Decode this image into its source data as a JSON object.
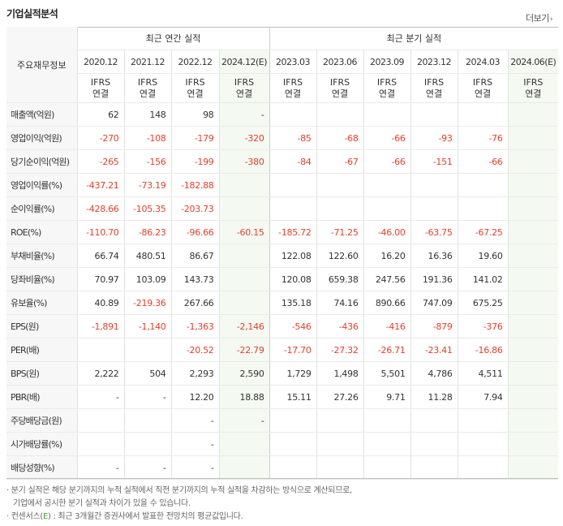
{
  "header": {
    "title": "기업실적분석",
    "more_label": "더보기",
    "more_chevron": "›"
  },
  "table": {
    "row_header_label": "주요재무정보",
    "groups": {
      "annual": "최근 연간 실적",
      "quarterly": "최근 분기 실적"
    },
    "periods": [
      "2020.12",
      "2021.12",
      "2022.12",
      "2024.12(E)",
      "2023.03",
      "2023.06",
      "2023.09",
      "2023.12",
      "2024.03",
      "2024.06(E)"
    ],
    "ifrs": [
      "IFRS",
      "IFRS",
      "IFRS",
      "IFRS",
      "IFRS",
      "IFRS",
      "IFRS",
      "IFRS",
      "IFRS",
      "IFRS"
    ],
    "basis": [
      "연결",
      "연결",
      "연결",
      "연결",
      "연결",
      "연결",
      "연결",
      "연결",
      "연결",
      "연결"
    ],
    "rows": [
      {
        "label": "매출액(억원)",
        "values": [
          "62",
          "148",
          "98",
          "-",
          "",
          "",
          "",
          "",
          "",
          ""
        ]
      },
      {
        "label": "영업이익(억원)",
        "values": [
          "-270",
          "-108",
          "-179",
          "-320",
          "-85",
          "-68",
          "-66",
          "-93",
          "-76",
          ""
        ]
      },
      {
        "label": "당기순이익(억원)",
        "values": [
          "-265",
          "-156",
          "-199",
          "-380",
          "-84",
          "-67",
          "-66",
          "-151",
          "-66",
          ""
        ]
      },
      {
        "label": "영업이익률(%)",
        "values": [
          "-437.21",
          "-73.19",
          "-182.88",
          "",
          "",
          "",
          "",
          "",
          "",
          ""
        ]
      },
      {
        "label": "순이익률(%)",
        "values": [
          "-428.66",
          "-105.35",
          "-203.73",
          "",
          "",
          "",
          "",
          "",
          "",
          ""
        ]
      },
      {
        "label": "ROE(%)",
        "values": [
          "-110.70",
          "-86.23",
          "-96.66",
          "-60.15",
          "-185.72",
          "-71.25",
          "-46.00",
          "-63.75",
          "-67.25",
          ""
        ]
      },
      {
        "label": "부채비율(%)",
        "values": [
          "66.74",
          "480.51",
          "86.67",
          "",
          "122.08",
          "122.60",
          "16.20",
          "16.36",
          "19.60",
          ""
        ]
      },
      {
        "label": "당좌비율(%)",
        "values": [
          "70.97",
          "103.09",
          "143.73",
          "",
          "120.08",
          "659.38",
          "247.56",
          "191.36",
          "141.02",
          ""
        ]
      },
      {
        "label": "유보율(%)",
        "values": [
          "40.89",
          "-219.36",
          "267.66",
          "",
          "135.18",
          "74.16",
          "890.66",
          "747.09",
          "675.25",
          ""
        ]
      },
      {
        "label": "EPS(원)",
        "values": [
          "-1,891",
          "-1,140",
          "-1,363",
          "-2,146",
          "-546",
          "-436",
          "-416",
          "-879",
          "-376",
          ""
        ]
      },
      {
        "label": "PER(배)",
        "values": [
          "",
          "",
          "-20.52",
          "-22.79",
          "-17.70",
          "-27.32",
          "-26.71",
          "-23.41",
          "-16.86",
          ""
        ]
      },
      {
        "label": "BPS(원)",
        "values": [
          "2,222",
          "504",
          "2,293",
          "2,590",
          "1,729",
          "1,498",
          "5,501",
          "4,786",
          "4,511",
          ""
        ]
      },
      {
        "label": "PBR(배)",
        "values": [
          "-",
          "-",
          "12.20",
          "18.88",
          "15.11",
          "27.26",
          "9.71",
          "11.28",
          "7.94",
          ""
        ]
      },
      {
        "label": "주당배당금(원)",
        "values": [
          "",
          "",
          "-",
          "-",
          "",
          "",
          "",
          "",
          "",
          ""
        ]
      },
      {
        "label": "시가배당률(%)",
        "values": [
          "",
          "",
          "-",
          "",
          "",
          "",
          "",
          "",
          "",
          ""
        ]
      },
      {
        "label": "배당성향(%)",
        "values": [
          "-",
          "-",
          "-",
          "",
          "",
          "",
          "",
          "",
          "",
          ""
        ]
      }
    ]
  },
  "notes": {
    "line1": "분기 실적은 해당 분기까지의 누적 실적에서 직전 분기까지의 누적 실적을 차감하는 방식으로 계산되므로,",
    "line2": "기업에서 공시한 분기 실적과 차이가 있을 수 있습니다.",
    "line3_prefix": "컨센서스(",
    "line3_e": "E",
    "line3_suffix": ") : 최근 3개월간 증권사에서 발표한 전망치의 평균값입니다."
  },
  "colors": {
    "negative": "#e3402c",
    "ifrs": "#e2573c",
    "estimate_bg": "#f4f9f2",
    "label_bg": "#f7f7f7"
  }
}
